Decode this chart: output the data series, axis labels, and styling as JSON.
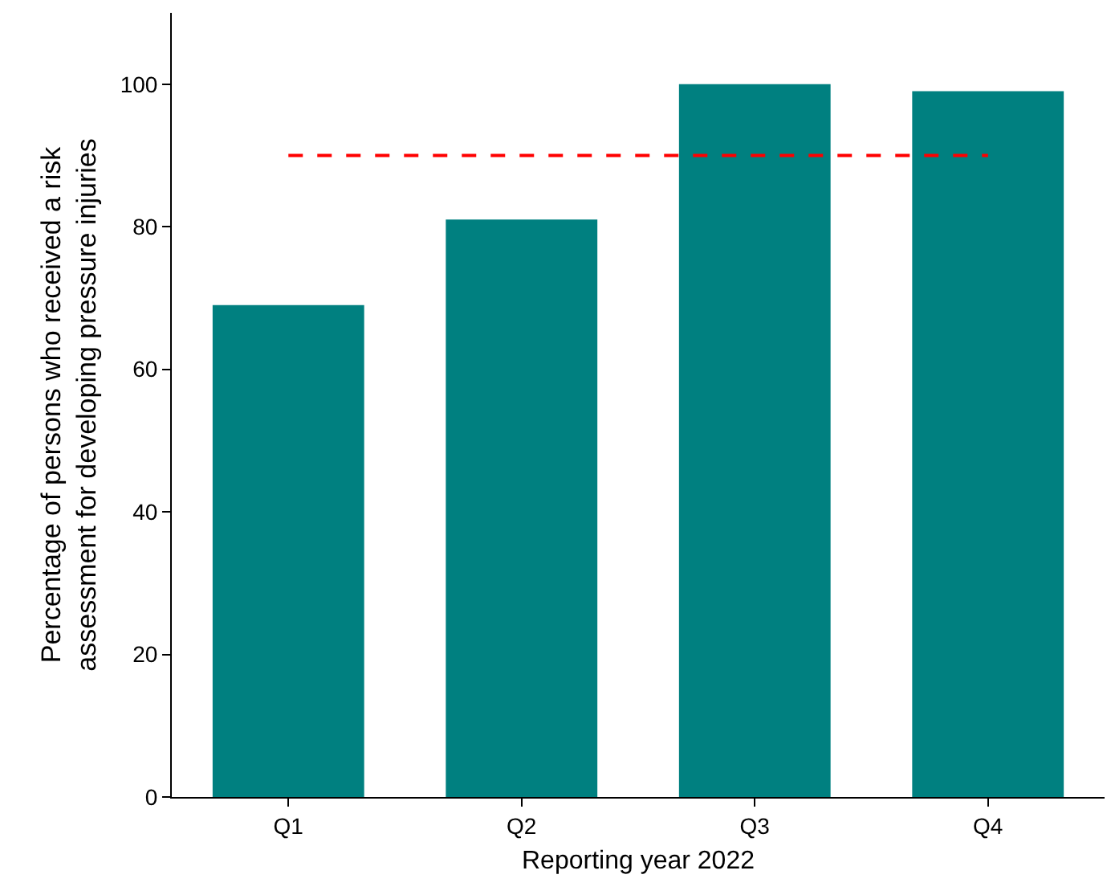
{
  "chart_data": {
    "type": "bar",
    "xlabel": "Reporting year 2022",
    "ylabel": "Percentage of persons who received a risk assessment for developing pressure injuries",
    "categories": [
      "Q1",
      "Q2",
      "Q3",
      "Q4"
    ],
    "values": [
      69,
      81,
      100,
      99
    ],
    "color": "#008080",
    "ylim": [
      0,
      110
    ],
    "yticks": [
      0,
      20,
      40,
      60,
      80,
      100
    ],
    "grid": false,
    "ref_lines": [
      {
        "axis": "y",
        "value": 90,
        "color": "#ff0000",
        "line_style": "dashed"
      }
    ]
  }
}
